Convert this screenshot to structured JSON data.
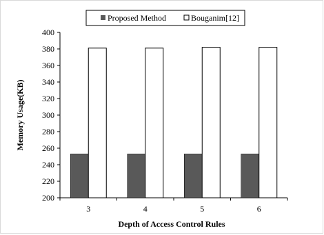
{
  "chart_data": {
    "type": "bar",
    "categories": [
      "3",
      "4",
      "5",
      "6"
    ],
    "series": [
      {
        "name": "Proposed Method",
        "values": [
          253,
          253,
          253,
          253
        ],
        "fill": "#595959"
      },
      {
        "name": "Bouganim[12]",
        "values": [
          381,
          381,
          382,
          382
        ],
        "fill": "#ffffff"
      }
    ],
    "xlabel": "Depth of Access Control Rules",
    "ylabel": "Memory Usage(KB)",
    "ylim": [
      200,
      400
    ],
    "yticks": [
      "200",
      "220",
      "240",
      "260",
      "280",
      "300",
      "320",
      "340",
      "360",
      "380",
      "400"
    ],
    "grid": false,
    "legend_position": "top-center",
    "legend_border": true
  }
}
